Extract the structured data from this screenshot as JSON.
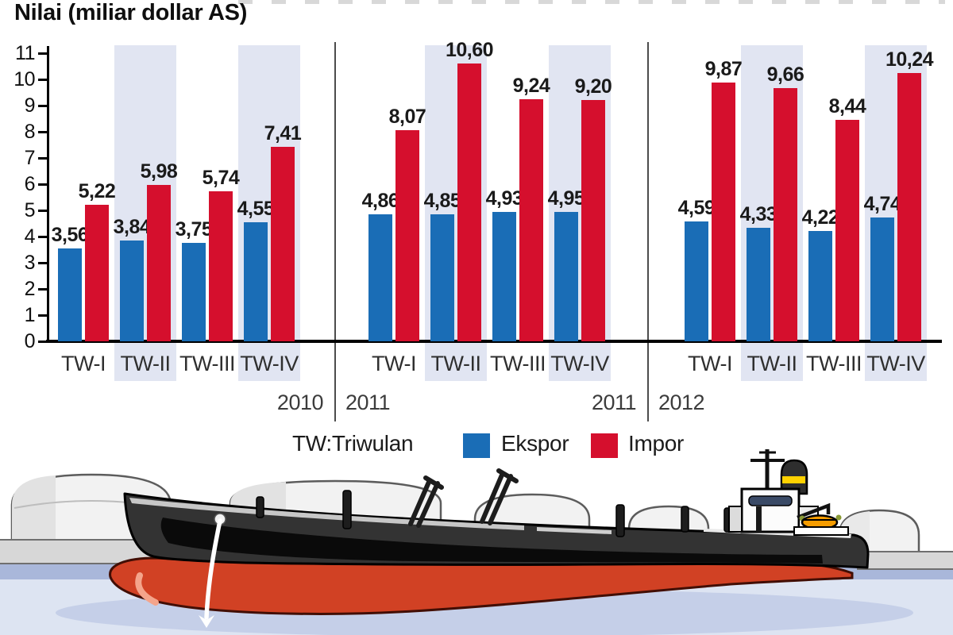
{
  "title": "Nilai (miliar dollar AS)",
  "legend": {
    "note": "TW:Triwulan",
    "items": [
      {
        "label": "Ekspor",
        "color": "#1a6db6"
      },
      {
        "label": "Impor",
        "color": "#d50f2d"
      }
    ]
  },
  "chart_data": {
    "type": "bar",
    "title": "Nilai (miliar dollar AS)",
    "unit": "miliar dollar AS",
    "ylim": [
      0,
      11
    ],
    "yticks": [
      0,
      1,
      2,
      3,
      4,
      5,
      6,
      7,
      8,
      9,
      10,
      11
    ],
    "grid": false,
    "legend_position": "bottom",
    "decimal_separator": ",",
    "categories": [
      "TW-I",
      "TW-II",
      "TW-III",
      "TW-IV"
    ],
    "groups": [
      {
        "year": "2010",
        "series": [
          {
            "name": "Ekspor",
            "color": "#1a6db6",
            "values": [
              3.56,
              3.84,
              3.75,
              4.55
            ]
          },
          {
            "name": "Impor",
            "color": "#d50f2d",
            "values": [
              5.22,
              5.98,
              5.74,
              7.41
            ]
          }
        ]
      },
      {
        "year": "2011",
        "series": [
          {
            "name": "Ekspor",
            "color": "#1a6db6",
            "values": [
              4.86,
              4.85,
              4.93,
              4.95
            ]
          },
          {
            "name": "Impor",
            "color": "#d50f2d",
            "values": [
              8.07,
              10.6,
              9.24,
              9.2
            ]
          }
        ]
      },
      {
        "year": "2012",
        "series": [
          {
            "name": "Ekspor",
            "color": "#1a6db6",
            "values": [
              4.59,
              4.33,
              4.22,
              4.74
            ]
          },
          {
            "name": "Impor",
            "color": "#d50f2d",
            "values": [
              9.87,
              9.66,
              8.44,
              10.24
            ]
          }
        ]
      }
    ],
    "year_boundaries": [
      {
        "left_year": "2010",
        "right_year": "2011"
      },
      {
        "left_year": "2011",
        "right_year": "2012"
      }
    ]
  }
}
